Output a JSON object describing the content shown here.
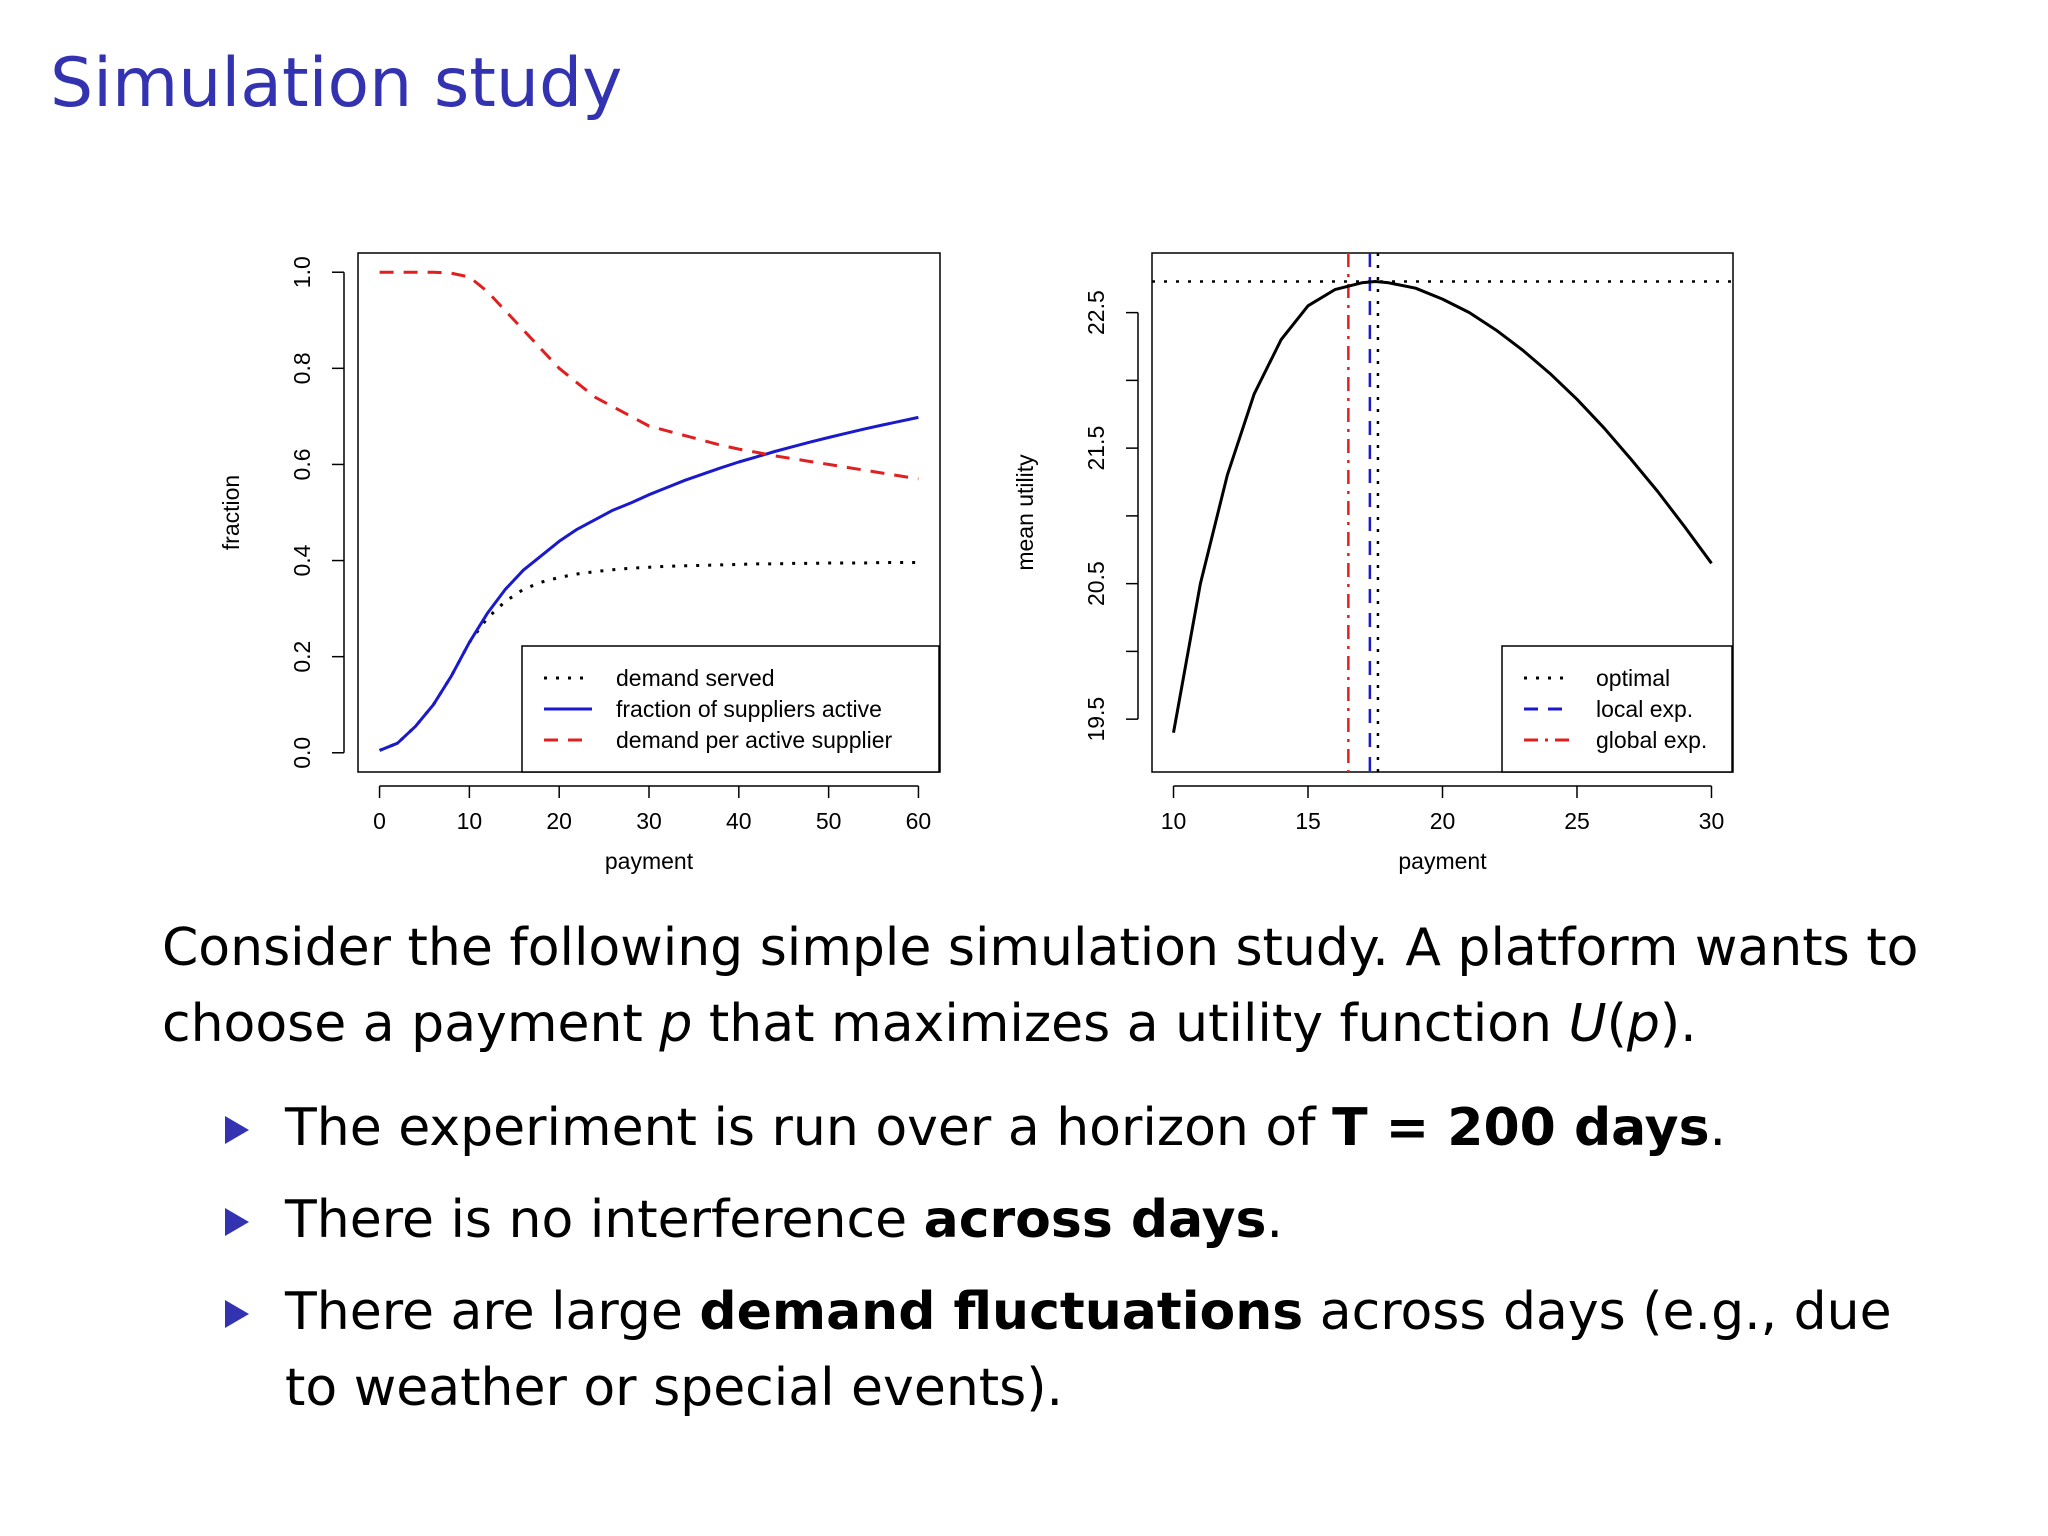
{
  "slide": {
    "title": "Simulation study",
    "intro": {
      "before_p": "Consider the following simple simulation study.  A platform wants to choose a payment ",
      "p": "p",
      "middle": " that maximizes a utility function ",
      "U": "U",
      "paren_open": "(",
      "p2": "p",
      "paren_close": ")."
    },
    "bullets": [
      {
        "pre": "The experiment is run over a horizon of ",
        "bold": "T = 200 days",
        "post": "."
      },
      {
        "pre": "There is no interference ",
        "bold": "across days",
        "post": "."
      },
      {
        "pre": "There are large ",
        "bold": "demand fluctuations",
        "post": " across days (e.g., due to weather or special events)."
      }
    ],
    "colors": {
      "title": "#3333b2",
      "bullet": "#3333b2"
    }
  },
  "chart_data": [
    {
      "type": "line",
      "xlabel": "payment",
      "ylabel": "fraction",
      "xlim": [
        0,
        60
      ],
      "ylim": [
        0,
        1
      ],
      "xticks": [
        "0",
        "10",
        "20",
        "30",
        "40",
        "50",
        "60"
      ],
      "yticks": [
        "0.0",
        "0.2",
        "0.4",
        "0.6",
        "0.8",
        "1.0"
      ],
      "legend_position": "bottom-right",
      "x": [
        0,
        2,
        4,
        6,
        8,
        10,
        12,
        14,
        16,
        18,
        20,
        22,
        24,
        26,
        28,
        30,
        32,
        34,
        36,
        38,
        40,
        42,
        44,
        46,
        48,
        50,
        52,
        54,
        56,
        58,
        60
      ],
      "series": [
        {
          "name": "demand served",
          "color": "#000000",
          "style": "dotted",
          "values": [
            0.005,
            0.02,
            0.055,
            0.1,
            0.16,
            0.23,
            0.28,
            0.315,
            0.34,
            0.355,
            0.365,
            0.372,
            0.377,
            0.381,
            0.384,
            0.386,
            0.388,
            0.389,
            0.39,
            0.391,
            0.392,
            0.393,
            0.393,
            0.394,
            0.394,
            0.395,
            0.395,
            0.395,
            0.396,
            0.396,
            0.396
          ]
        },
        {
          "name": "fraction of suppliers active",
          "color": "#1a1acc",
          "style": "solid",
          "values": [
            0.005,
            0.02,
            0.055,
            0.1,
            0.16,
            0.23,
            0.29,
            0.34,
            0.38,
            0.41,
            0.44,
            0.465,
            0.485,
            0.505,
            0.52,
            0.537,
            0.552,
            0.567,
            0.58,
            0.593,
            0.605,
            0.616,
            0.627,
            0.637,
            0.647,
            0.656,
            0.665,
            0.674,
            0.682,
            0.69,
            0.698
          ]
        },
        {
          "name": "demand per active supplier",
          "color": "#e02020",
          "style": "dashed",
          "values": [
            1.0,
            1.0,
            1.0,
            1.0,
            0.998,
            0.99,
            0.96,
            0.92,
            0.88,
            0.84,
            0.8,
            0.77,
            0.74,
            0.72,
            0.7,
            0.68,
            0.67,
            0.66,
            0.65,
            0.64,
            0.632,
            0.625,
            0.618,
            0.612,
            0.606,
            0.6,
            0.594,
            0.588,
            0.582,
            0.576,
            0.57
          ]
        }
      ]
    },
    {
      "type": "line",
      "xlabel": "payment",
      "ylabel": "mean utility",
      "xlim": [
        10,
        30
      ],
      "ylim": [
        19.2,
        22.8
      ],
      "xticks": [
        "10",
        "15",
        "20",
        "25",
        "30"
      ],
      "yticks": [
        "19.5",
        "20.5",
        "21.5",
        "22.5"
      ],
      "legend_position": "bottom-right",
      "x": [
        10,
        11,
        12,
        13,
        14,
        15,
        16,
        17,
        17.5,
        18,
        19,
        20,
        21,
        22,
        23,
        24,
        25,
        26,
        27,
        28,
        29,
        30
      ],
      "series": [
        {
          "name": "mean utility",
          "color": "#000000",
          "style": "solid",
          "values": [
            19.4,
            20.5,
            21.3,
            21.9,
            22.3,
            22.55,
            22.67,
            22.72,
            22.73,
            22.72,
            22.68,
            22.6,
            22.5,
            22.37,
            22.22,
            22.05,
            21.86,
            21.65,
            21.42,
            21.18,
            20.92,
            20.65
          ]
        }
      ],
      "reference_lines": [
        {
          "name": "optimal",
          "color": "#000000",
          "style": "dotted",
          "orientation": "both",
          "x": 17.6,
          "y": 22.73
        },
        {
          "name": "local exp.",
          "color": "#1a1acc",
          "style": "dashed",
          "orientation": "vertical",
          "x": 17.3
        },
        {
          "name": "global exp.",
          "color": "#e02020",
          "style": "dashdot",
          "orientation": "vertical",
          "x": 16.5
        }
      ]
    }
  ]
}
